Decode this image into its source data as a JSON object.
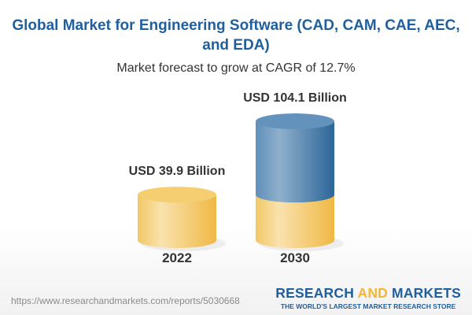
{
  "title": "Global Market for Engineering Software (CAD, CAM, CAE, AEC, and EDA)",
  "subtitle": "Market forecast to grow at CAGR of 12.7%",
  "url": "https://www.researchandmarkets.com/reports/5030668",
  "logo": {
    "word1": "RESEARCH ",
    "word2": "AND",
    "word3": " MARKETS",
    "tagline": "THE WORLD'S LARGEST MARKET RESEARCH STORE"
  },
  "colors": {
    "brand_blue": "#1f5f9e",
    "gold": "#f2b632",
    "cylinder_yellow": "#f5c85a",
    "cylinder_blue": "#4a86b8"
  },
  "chart_data": {
    "type": "bar",
    "style": "3d-cylinder",
    "categories": [
      "2022",
      "2030"
    ],
    "values": [
      39.9,
      104.1
    ],
    "data_labels": [
      "USD 39.9 Billion",
      "USD 104.1 Billion"
    ],
    "unit": "USD Billion",
    "cagr": "12.7%"
  }
}
